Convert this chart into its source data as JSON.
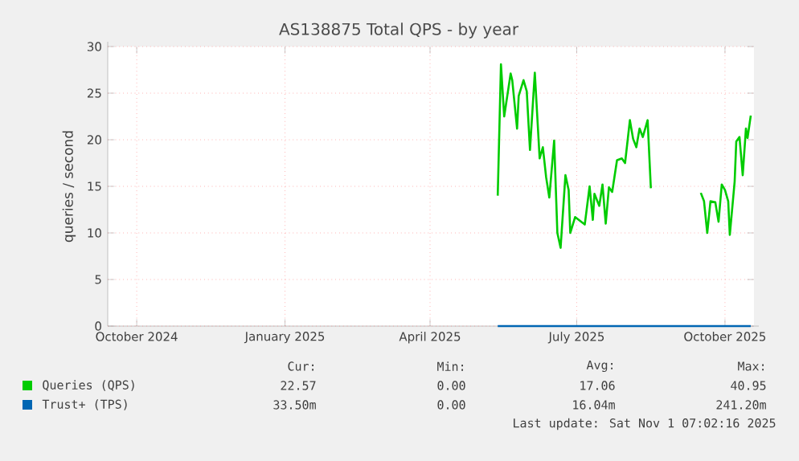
{
  "chart_data": {
    "type": "line",
    "title": "AS138875 Total QPS - by year",
    "ylabel": "queries / second",
    "xlim": [
      "2024-09-13",
      "2025-10-19"
    ],
    "ylim": [
      0,
      30
    ],
    "xticks": [
      {
        "value": "2024-10-01",
        "label": "October 2024"
      },
      {
        "value": "2025-01-01",
        "label": "January 2025"
      },
      {
        "value": "2025-04-01",
        "label": "April 2025"
      },
      {
        "value": "2025-07-01",
        "label": "July 2025"
      },
      {
        "value": "2025-10-01",
        "label": "October 2025"
      }
    ],
    "yticks": [
      0,
      5,
      10,
      15,
      20,
      25,
      30
    ],
    "grid": true,
    "legend": "bottom",
    "line_style": "solid",
    "marker": "none",
    "series": [
      {
        "name": "Queries (QPS)",
        "color": "#00cc00",
        "x": [
          "2025-05-13",
          "2025-05-15",
          "2025-05-17",
          "2025-05-21",
          "2025-05-22",
          "2025-05-25",
          "2025-05-26",
          "2025-05-29",
          "2025-05-31",
          "2025-06-02",
          "2025-06-05",
          "2025-06-08",
          "2025-06-10",
          "2025-06-12",
          "2025-06-14",
          "2025-06-17",
          "2025-06-19",
          "2025-06-21",
          "2025-06-24",
          "2025-06-26",
          "2025-06-27",
          "2025-06-30",
          "2025-07-03",
          "2025-07-06",
          "2025-07-09",
          "2025-07-11",
          "2025-07-12",
          "2025-07-15",
          "2025-07-17",
          "2025-07-19",
          "2025-07-21",
          "2025-07-23",
          "2025-07-26",
          "2025-07-29",
          "2025-07-31",
          "2025-08-03",
          "2025-08-05",
          "2025-08-07",
          "2025-08-09",
          "2025-08-11",
          "2025-08-14",
          "2025-08-16",
          "2025-08-30",
          "2025-09-16",
          "2025-09-18",
          "2025-09-20",
          "2025-09-22",
          "2025-09-25",
          "2025-09-27",
          "2025-09-29",
          "2025-10-01",
          "2025-10-03",
          "2025-10-04",
          "2025-10-07",
          "2025-10-08",
          "2025-10-10",
          "2025-10-12",
          "2025-10-14",
          "2025-10-15",
          "2025-10-17"
        ],
        "values": [
          14.0,
          28.1,
          22.5,
          27.1,
          26.4,
          21.2,
          24.7,
          26.4,
          25.2,
          18.9,
          27.2,
          18.0,
          19.2,
          16.0,
          13.8,
          19.9,
          10.0,
          8.4,
          16.2,
          14.6,
          10.0,
          11.7,
          11.3,
          10.9,
          15.0,
          11.4,
          14.2,
          12.9,
          15.2,
          11.0,
          14.9,
          14.4,
          17.8,
          18.0,
          17.5,
          22.1,
          20.1,
          19.2,
          21.2,
          20.3,
          22.1,
          14.8,
          null,
          14.3,
          13.4,
          10.0,
          13.4,
          13.3,
          11.2,
          15.2,
          14.6,
          13.4,
          9.8,
          15.5,
          19.8,
          20.3,
          16.2,
          21.2,
          20.2,
          22.6
        ]
      },
      {
        "name": "Trust+ (TPS)",
        "color": "#0066b3",
        "x": [
          "2025-05-13",
          "2025-10-17"
        ],
        "values": [
          0,
          0
        ]
      }
    ],
    "annotations": [
      "Cur:",
      "Min:",
      "Avg:",
      "Max:",
      "22.57",
      "0.00",
      "17.06",
      "40.95",
      "33.50m",
      "0.00",
      "16.04m",
      "241.20m",
      "Last update: Sat Nov  1 07:02:16 2025"
    ]
  }
}
